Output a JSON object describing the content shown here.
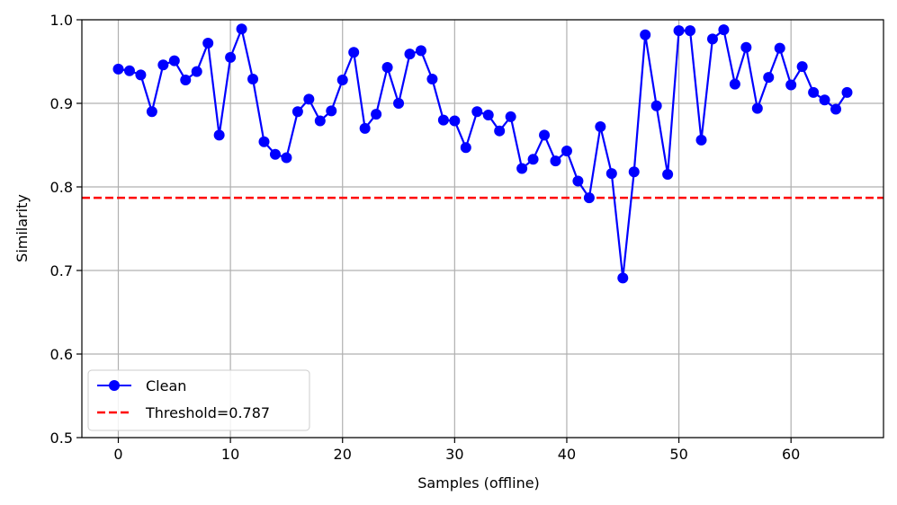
{
  "chart_data": {
    "type": "line",
    "xlabel": "Samples (offline)",
    "ylabel": "Similarity",
    "xlim": [
      -3.25,
      68.25
    ],
    "ylim": [
      0.5,
      1.0
    ],
    "xticks": [
      "0",
      "10",
      "20",
      "30",
      "40",
      "50",
      "60"
    ],
    "yticks": [
      "0.5",
      "0.6",
      "0.7",
      "0.8",
      "0.9",
      "1.0"
    ],
    "grid": true,
    "legend_position": "lower-left",
    "series": [
      {
        "name": "Clean",
        "color": "#0000ff",
        "marker": "circle",
        "x": [
          0,
          1,
          2,
          3,
          4,
          5,
          6,
          7,
          8,
          9,
          10,
          11,
          12,
          13,
          14,
          15,
          16,
          17,
          18,
          19,
          20,
          21,
          22,
          23,
          24,
          25,
          26,
          27,
          28,
          29,
          30,
          31,
          32,
          33,
          34,
          35,
          36,
          37,
          38,
          39,
          40,
          41,
          42,
          43,
          44,
          45,
          46,
          47,
          48,
          49,
          50,
          51,
          52,
          53,
          54,
          55,
          56,
          57,
          58,
          59,
          60,
          61,
          62,
          63,
          64,
          65
        ],
        "y": [
          0.941,
          0.939,
          0.934,
          0.89,
          0.946,
          0.951,
          0.928,
          0.938,
          0.972,
          0.862,
          0.955,
          0.989,
          0.929,
          0.854,
          0.839,
          0.835,
          0.89,
          0.905,
          0.879,
          0.891,
          0.928,
          0.961,
          0.87,
          0.887,
          0.943,
          0.9,
          0.959,
          0.963,
          0.929,
          0.88,
          0.879,
          0.847,
          0.89,
          0.886,
          0.867,
          0.884,
          0.822,
          0.833,
          0.862,
          0.831,
          0.843,
          0.807,
          0.787,
          0.872,
          0.816,
          0.691,
          0.818,
          0.982,
          0.897,
          0.815,
          0.987,
          0.987,
          0.856,
          0.977,
          0.988,
          0.923,
          0.967,
          0.894,
          0.931,
          0.966,
          0.922,
          0.944,
          0.913,
          0.904,
          0.893,
          0.913
        ]
      }
    ],
    "threshold": {
      "name": "Threshold=0.787",
      "value": 0.787,
      "color": "#ff0000",
      "style": "dashed"
    }
  }
}
